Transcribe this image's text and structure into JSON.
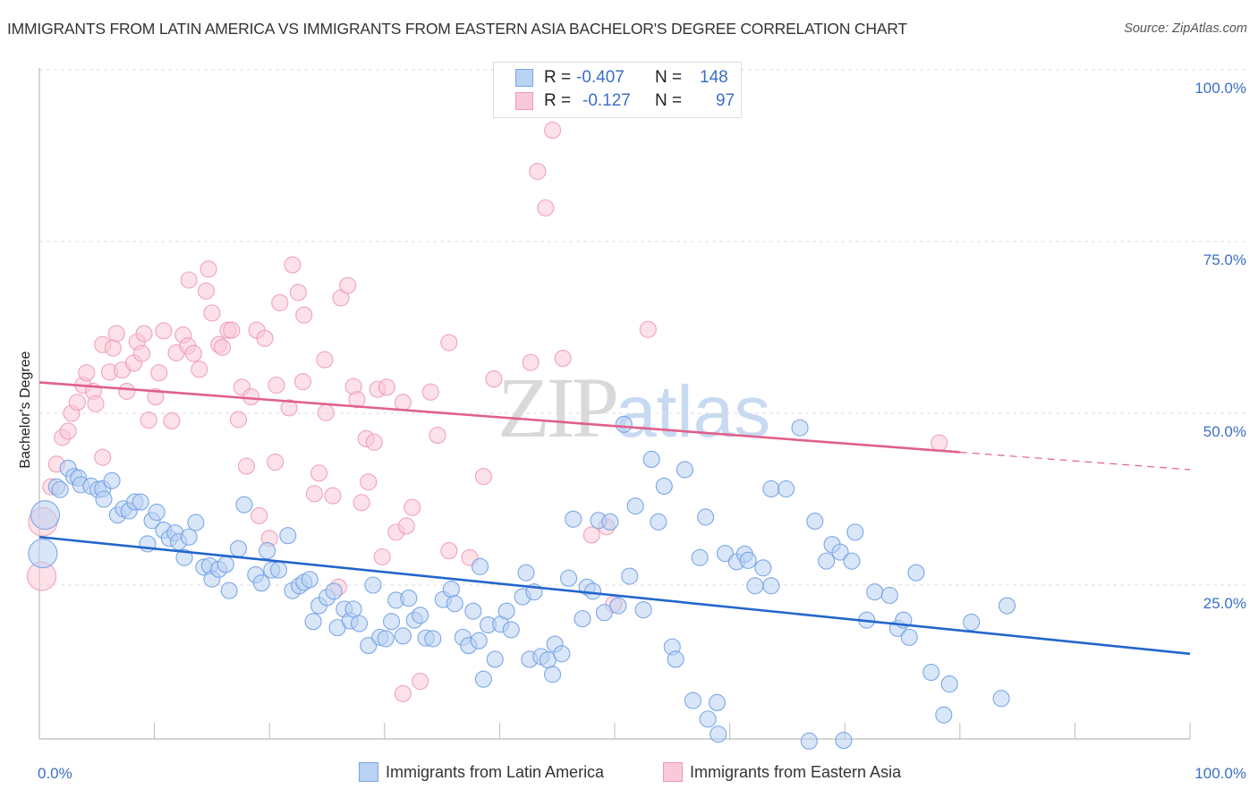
{
  "title": "IMMIGRANTS FROM LATIN AMERICA VS IMMIGRANTS FROM EASTERN ASIA BACHELOR'S DEGREE CORRELATION CHART",
  "source": "Source: ZipAtlas.com",
  "watermark": {
    "zip": "ZIP",
    "atlas": "atlas"
  },
  "legend": {
    "rows": [
      {
        "r_label": "R =",
        "r_value": "-0.407",
        "n_label": "N =",
        "n_value": "148"
      },
      {
        "r_label": "R =",
        "r_value": "-0.127",
        "n_label": "N =",
        "n_value": "97"
      }
    ]
  },
  "bottom_legend": {
    "series_a": "Immigrants from Latin America",
    "series_b": "Immigrants from Eastern Asia"
  },
  "chart_data": {
    "type": "scatter",
    "title": "IMMIGRANTS FROM LATIN AMERICA VS IMMIGRANTS FROM EASTERN ASIA BACHELOR'S DEGREE CORRELATION CHART",
    "xlabel": "",
    "ylabel": "Bachelor's Degree",
    "xlim": [
      0,
      100
    ],
    "ylim": [
      0,
      100
    ],
    "x_tick_labels": [
      "0.0%",
      "100.0%"
    ],
    "y_tick_labels": [
      "25.0%",
      "50.0%",
      "75.0%",
      "100.0%"
    ],
    "y_ticks": [
      25,
      50,
      75,
      100
    ],
    "grid": true,
    "legend_position": "top-center",
    "colors": {
      "series_a": "#6f9fe6",
      "series_b": "#f09ab5",
      "trend_a": "#2266cc",
      "trend_b": "#e0608a",
      "tick_text": "#3b6fc4"
    },
    "series": [
      {
        "name": "Immigrants from Latin America",
        "R": -0.407,
        "N": 148,
        "trend": {
          "x": [
            0,
            100
          ],
          "y": [
            32.0,
            15.0
          ],
          "solid_until": 100
        },
        "points": [
          [
            0.3,
            29.6
          ],
          [
            0.5,
            35.2
          ],
          [
            1.5,
            39.3
          ],
          [
            1.8,
            38.9
          ],
          [
            2.5,
            42.0
          ],
          [
            3.0,
            40.8
          ],
          [
            3.4,
            40.6
          ],
          [
            3.6,
            39.6
          ],
          [
            4.5,
            39.4
          ],
          [
            5.1,
            38.9
          ],
          [
            5.5,
            39.0
          ],
          [
            5.6,
            37.5
          ],
          [
            6.3,
            40.2
          ],
          [
            6.8,
            35.2
          ],
          [
            7.3,
            36.1
          ],
          [
            7.8,
            35.8
          ],
          [
            8.3,
            37.1
          ],
          [
            8.8,
            37.1
          ],
          [
            9.4,
            31.0
          ],
          [
            9.8,
            34.4
          ],
          [
            10.2,
            35.6
          ],
          [
            10.8,
            33.0
          ],
          [
            11.3,
            31.8
          ],
          [
            11.8,
            32.6
          ],
          [
            12.1,
            31.3
          ],
          [
            12.6,
            29.0
          ],
          [
            13.0,
            32.0
          ],
          [
            13.6,
            34.1
          ],
          [
            14.3,
            27.6
          ],
          [
            14.8,
            27.8
          ],
          [
            15.0,
            25.9
          ],
          [
            15.6,
            27.3
          ],
          [
            16.2,
            28.0
          ],
          [
            16.5,
            24.2
          ],
          [
            17.3,
            30.3
          ],
          [
            17.8,
            36.7
          ],
          [
            18.8,
            26.5
          ],
          [
            19.3,
            25.3
          ],
          [
            19.8,
            30.0
          ],
          [
            20.2,
            27.2
          ],
          [
            20.8,
            27.2
          ],
          [
            21.6,
            32.2
          ],
          [
            22.0,
            24.2
          ],
          [
            22.6,
            24.9
          ],
          [
            23.0,
            25.4
          ],
          [
            23.5,
            25.8
          ],
          [
            23.8,
            19.7
          ],
          [
            24.3,
            22.0
          ],
          [
            25.0,
            23.2
          ],
          [
            25.6,
            24.1
          ],
          [
            25.9,
            18.8
          ],
          [
            26.5,
            21.5
          ],
          [
            27.0,
            19.8
          ],
          [
            27.3,
            21.5
          ],
          [
            27.8,
            19.4
          ],
          [
            28.6,
            16.2
          ],
          [
            29.0,
            25.0
          ],
          [
            29.6,
            17.4
          ],
          [
            30.1,
            17.2
          ],
          [
            30.6,
            19.7
          ],
          [
            31.0,
            22.8
          ],
          [
            31.6,
            17.6
          ],
          [
            32.1,
            23.1
          ],
          [
            32.6,
            19.9
          ],
          [
            33.1,
            20.6
          ],
          [
            33.6,
            17.3
          ],
          [
            34.2,
            17.2
          ],
          [
            35.1,
            22.9
          ],
          [
            35.8,
            24.4
          ],
          [
            36.1,
            22.3
          ],
          [
            36.8,
            17.4
          ],
          [
            37.3,
            16.2
          ],
          [
            37.7,
            21.2
          ],
          [
            38.2,
            16.9
          ],
          [
            38.3,
            27.7
          ],
          [
            39.0,
            19.2
          ],
          [
            39.6,
            14.2
          ],
          [
            40.1,
            19.3
          ],
          [
            40.6,
            21.2
          ],
          [
            41.0,
            18.5
          ],
          [
            42.0,
            23.3
          ],
          [
            42.3,
            26.8
          ],
          [
            42.6,
            14.2
          ],
          [
            43.0,
            24.0
          ],
          [
            43.6,
            14.6
          ],
          [
            44.2,
            14.1
          ],
          [
            44.6,
            12.0
          ],
          [
            44.8,
            16.4
          ],
          [
            45.4,
            15.0
          ],
          [
            46.0,
            26.0
          ],
          [
            46.4,
            34.6
          ],
          [
            47.2,
            20.1
          ],
          [
            47.6,
            24.7
          ],
          [
            48.1,
            24.1
          ],
          [
            48.6,
            34.4
          ],
          [
            49.1,
            21.0
          ],
          [
            49.6,
            34.2
          ],
          [
            50.3,
            22.0
          ],
          [
            50.8,
            48.4
          ],
          [
            51.3,
            26.3
          ],
          [
            51.8,
            36.5
          ],
          [
            52.5,
            21.4
          ],
          [
            53.2,
            43.3
          ],
          [
            53.8,
            34.2
          ],
          [
            54.3,
            39.4
          ],
          [
            55.0,
            16.0
          ],
          [
            55.3,
            14.2
          ],
          [
            56.1,
            41.8
          ],
          [
            56.8,
            8.2
          ],
          [
            57.4,
            29.0
          ],
          [
            57.9,
            34.9
          ],
          [
            58.1,
            5.5
          ],
          [
            58.9,
            7.9
          ],
          [
            59.0,
            3.3
          ],
          [
            59.6,
            29.6
          ],
          [
            60.6,
            28.4
          ],
          [
            61.3,
            29.5
          ],
          [
            61.6,
            28.6
          ],
          [
            62.2,
            24.9
          ],
          [
            62.9,
            27.5
          ],
          [
            63.6,
            39.0
          ],
          [
            63.6,
            24.9
          ],
          [
            64.9,
            39.0
          ],
          [
            66.1,
            47.9
          ],
          [
            66.9,
            2.3
          ],
          [
            67.4,
            34.3
          ],
          [
            68.4,
            28.5
          ],
          [
            68.9,
            30.9
          ],
          [
            69.6,
            29.8
          ],
          [
            69.9,
            2.4
          ],
          [
            70.6,
            28.5
          ],
          [
            70.9,
            32.7
          ],
          [
            71.9,
            19.9
          ],
          [
            72.6,
            24.0
          ],
          [
            73.9,
            23.5
          ],
          [
            74.6,
            18.7
          ],
          [
            75.1,
            19.9
          ],
          [
            75.6,
            17.4
          ],
          [
            76.2,
            26.8
          ],
          [
            77.5,
            12.3
          ],
          [
            78.6,
            6.1
          ],
          [
            79.1,
            10.6
          ],
          [
            81.0,
            19.6
          ],
          [
            83.6,
            8.5
          ],
          [
            84.1,
            22.0
          ],
          [
            38.6,
            11.3
          ]
        ]
      },
      {
        "name": "Immigrants from Eastern Asia",
        "R": -0.127,
        "N": 97,
        "trend": {
          "x": [
            0,
            100
          ],
          "y": [
            54.5,
            41.8
          ],
          "solid_until": 80
        },
        "points": [
          [
            0.2,
            26.3
          ],
          [
            0.3,
            34.2
          ],
          [
            1.0,
            39.3
          ],
          [
            1.5,
            42.6
          ],
          [
            2.0,
            46.5
          ],
          [
            2.5,
            47.4
          ],
          [
            2.8,
            50.0
          ],
          [
            3.3,
            51.6
          ],
          [
            3.8,
            54.1
          ],
          [
            4.1,
            55.9
          ],
          [
            4.7,
            53.2
          ],
          [
            4.9,
            51.4
          ],
          [
            5.5,
            43.6
          ],
          [
            5.5,
            60.0
          ],
          [
            6.1,
            56.0
          ],
          [
            6.4,
            59.5
          ],
          [
            6.7,
            61.6
          ],
          [
            7.2,
            56.3
          ],
          [
            7.6,
            53.2
          ],
          [
            8.2,
            57.3
          ],
          [
            8.5,
            60.4
          ],
          [
            8.9,
            58.7
          ],
          [
            9.1,
            61.6
          ],
          [
            9.5,
            49.0
          ],
          [
            10.1,
            52.4
          ],
          [
            10.4,
            55.9
          ],
          [
            10.8,
            62.0
          ],
          [
            11.5,
            48.9
          ],
          [
            11.9,
            58.8
          ],
          [
            12.5,
            61.4
          ],
          [
            12.9,
            59.8
          ],
          [
            13.0,
            69.4
          ],
          [
            13.4,
            58.7
          ],
          [
            13.9,
            56.4
          ],
          [
            14.5,
            67.8
          ],
          [
            14.7,
            71.0
          ],
          [
            15.0,
            64.6
          ],
          [
            15.6,
            60.0
          ],
          [
            15.9,
            59.6
          ],
          [
            16.4,
            62.1
          ],
          [
            16.7,
            62.1
          ],
          [
            17.3,
            49.1
          ],
          [
            17.6,
            53.8
          ],
          [
            18.0,
            42.3
          ],
          [
            18.4,
            52.4
          ],
          [
            18.9,
            62.1
          ],
          [
            19.1,
            35.1
          ],
          [
            19.6,
            60.9
          ],
          [
            20.0,
            31.8
          ],
          [
            20.5,
            42.9
          ],
          [
            20.6,
            54.1
          ],
          [
            20.9,
            66.1
          ],
          [
            21.7,
            50.8
          ],
          [
            22.0,
            71.6
          ],
          [
            22.5,
            67.6
          ],
          [
            22.9,
            54.6
          ],
          [
            23.0,
            64.3
          ],
          [
            23.9,
            38.3
          ],
          [
            24.3,
            41.3
          ],
          [
            24.8,
            57.8
          ],
          [
            24.9,
            50.1
          ],
          [
            25.5,
            38.0
          ],
          [
            26.0,
            24.7
          ],
          [
            26.2,
            66.8
          ],
          [
            26.8,
            68.6
          ],
          [
            27.3,
            53.9
          ],
          [
            27.6,
            52.0
          ],
          [
            28.0,
            37.0
          ],
          [
            28.4,
            46.3
          ],
          [
            28.6,
            40.0
          ],
          [
            29.1,
            45.8
          ],
          [
            29.4,
            53.5
          ],
          [
            29.8,
            29.1
          ],
          [
            30.2,
            53.8
          ],
          [
            31.0,
            32.7
          ],
          [
            31.6,
            51.6
          ],
          [
            31.6,
            9.2
          ],
          [
            31.9,
            33.6
          ],
          [
            32.4,
            36.3
          ],
          [
            33.1,
            11.0
          ],
          [
            34.0,
            53.1
          ],
          [
            34.6,
            46.8
          ],
          [
            35.6,
            60.3
          ],
          [
            37.4,
            29.0
          ],
          [
            38.6,
            40.8
          ],
          [
            39.5,
            55.0
          ],
          [
            42.7,
            57.4
          ],
          [
            43.3,
            85.2
          ],
          [
            44.0,
            79.9
          ],
          [
            44.6,
            91.2
          ],
          [
            45.5,
            58.0
          ],
          [
            48.0,
            32.3
          ],
          [
            49.3,
            33.5
          ],
          [
            49.9,
            22.2
          ],
          [
            52.9,
            62.2
          ],
          [
            78.2,
            45.7
          ],
          [
            35.6,
            30.0
          ]
        ]
      }
    ]
  }
}
